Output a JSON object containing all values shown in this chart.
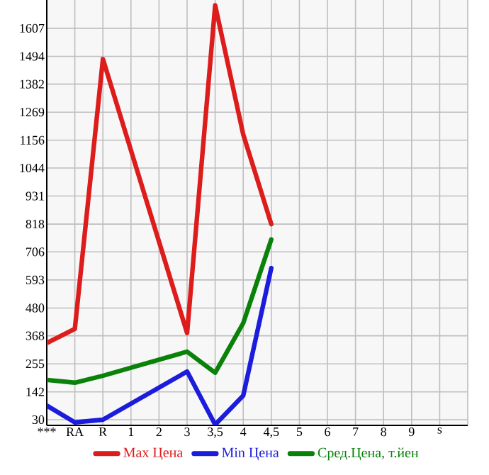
{
  "chart_data": {
    "type": "line",
    "categories": [
      "***",
      "RA",
      "R",
      "1",
      "2",
      "3",
      "3,5",
      "4",
      "4,5",
      "5",
      "6",
      "7",
      "8",
      "9",
      "s",
      null
    ],
    "ylim": [
      7,
      1721
    ],
    "yticks": [
      30,
      142,
      255,
      368,
      480,
      593,
      706,
      818,
      931,
      1044,
      1156,
      1269,
      1382,
      1494,
      1607
    ],
    "grid": true,
    "legend": "bottom",
    "marker": "none",
    "line_style": "solid",
    "series": [
      {
        "name": "Max Цена",
        "color": "#dd1c1c",
        "values": [
          339,
          396,
          1483,
          null,
          null,
          379,
          1700,
          1179,
          818,
          null,
          null,
          null,
          null,
          null,
          null,
          null
        ]
      },
      {
        "name": "Min Цена",
        "color": "#1c1cdd",
        "values": [
          87,
          19,
          30,
          null,
          null,
          224,
          10,
          127,
          641,
          null,
          null,
          null,
          null,
          null,
          null,
          null
        ]
      },
      {
        "name": "Сред.Цена, т.йен",
        "color": "#0a820a",
        "values": [
          190,
          179,
          207,
          null,
          null,
          304,
          219,
          419,
          756,
          null,
          null,
          null,
          null,
          null,
          null,
          null
        ]
      }
    ]
  }
}
